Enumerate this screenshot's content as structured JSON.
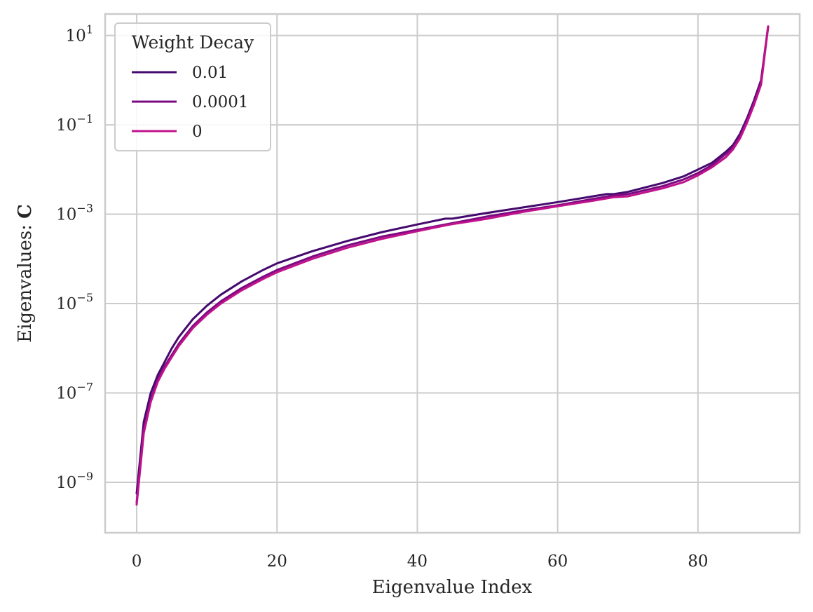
{
  "chart_data": {
    "type": "line",
    "title": "",
    "xlabel": "Eigenvalue Index",
    "ylabel": "Eigenvalues: ",
    "ylabel_bold": "C",
    "yscale": "log",
    "xlim": [
      -4.5,
      94.5
    ],
    "ylim_log10": [
      -10.13,
      1.48
    ],
    "grid": true,
    "x_ticks": [
      {
        "value": 0,
        "label": "0"
      },
      {
        "value": 20,
        "label": "20"
      },
      {
        "value": 40,
        "label": "40"
      },
      {
        "value": 60,
        "label": "60"
      },
      {
        "value": 80,
        "label": "80"
      }
    ],
    "y_ticks": [
      {
        "exp": 1,
        "base": "10",
        "sup": "1"
      },
      {
        "exp": -1,
        "base": "10",
        "sup": "−1"
      },
      {
        "exp": -3,
        "base": "10",
        "sup": "−3"
      },
      {
        "exp": -5,
        "base": "10",
        "sup": "−5"
      },
      {
        "exp": -7,
        "base": "10",
        "sup": "−7"
      },
      {
        "exp": -9,
        "base": "10",
        "sup": "−9"
      }
    ],
    "legend": {
      "title": "Weight Decay",
      "placement": "top-left"
    },
    "series": [
      {
        "name": "0.01",
        "color": "#440a6e",
        "x": [
          0,
          1,
          2,
          3,
          4,
          5,
          6,
          7,
          8,
          10,
          12,
          15,
          18,
          20,
          25,
          30,
          35,
          40,
          44,
          45,
          50,
          55,
          60,
          65,
          67,
          68,
          70,
          75,
          78,
          80,
          82,
          84,
          85,
          86,
          87,
          88,
          89,
          90
        ],
        "log10_y": [
          -9.25,
          -7.65,
          -7.0,
          -6.6,
          -6.3,
          -6.0,
          -5.75,
          -5.55,
          -5.35,
          -5.05,
          -4.8,
          -4.5,
          -4.25,
          -4.1,
          -3.83,
          -3.6,
          -3.4,
          -3.23,
          -3.1,
          -3.1,
          -2.97,
          -2.85,
          -2.73,
          -2.6,
          -2.55,
          -2.55,
          -2.5,
          -2.3,
          -2.15,
          -2.0,
          -1.85,
          -1.6,
          -1.45,
          -1.2,
          -0.85,
          -0.45,
          0.0,
          1.2
        ]
      },
      {
        "name": "0.0001",
        "color": "#7b0a80",
        "x": [
          0,
          1,
          2,
          3,
          4,
          5,
          6,
          7,
          8,
          10,
          12,
          15,
          18,
          20,
          25,
          30,
          35,
          40,
          44,
          45,
          50,
          55,
          60,
          65,
          68,
          70,
          75,
          78,
          80,
          82,
          84,
          85,
          86,
          87,
          88,
          89,
          90
        ],
        "log10_y": [
          -9.45,
          -7.8,
          -7.15,
          -6.7,
          -6.4,
          -6.15,
          -5.9,
          -5.7,
          -5.5,
          -5.2,
          -4.95,
          -4.65,
          -4.4,
          -4.25,
          -3.95,
          -3.7,
          -3.5,
          -3.35,
          -3.23,
          -3.2,
          -3.05,
          -2.92,
          -2.8,
          -2.66,
          -2.58,
          -2.55,
          -2.37,
          -2.22,
          -2.08,
          -1.9,
          -1.65,
          -1.5,
          -1.25,
          -0.9,
          -0.5,
          -0.05,
          1.2
        ]
      },
      {
        "name": "0",
        "color": "#c0128c",
        "x": [
          0,
          1,
          2,
          3,
          4,
          5,
          6,
          7,
          8,
          10,
          12,
          15,
          18,
          20,
          25,
          30,
          35,
          40,
          44,
          45,
          48,
          50,
          55,
          60,
          65,
          68,
          70,
          75,
          78,
          80,
          82,
          84,
          85,
          86,
          87,
          88,
          89,
          90
        ],
        "log10_y": [
          -9.5,
          -7.9,
          -7.2,
          -6.75,
          -6.45,
          -6.2,
          -5.95,
          -5.75,
          -5.55,
          -5.25,
          -5.0,
          -4.7,
          -4.45,
          -4.3,
          -4.0,
          -3.75,
          -3.55,
          -3.38,
          -3.25,
          -3.22,
          -3.15,
          -3.1,
          -2.95,
          -2.82,
          -2.7,
          -2.62,
          -2.6,
          -2.42,
          -2.28,
          -2.13,
          -1.95,
          -1.72,
          -1.55,
          -1.3,
          -0.95,
          -0.55,
          -0.1,
          1.2
        ]
      }
    ]
  }
}
